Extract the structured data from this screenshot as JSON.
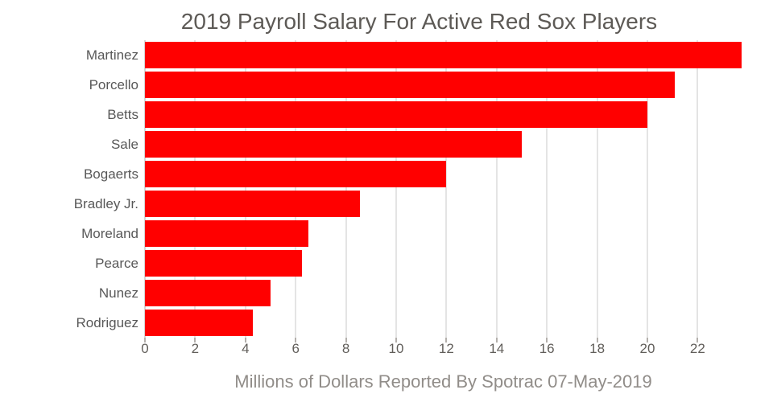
{
  "chart_data": {
    "type": "bar",
    "orientation": "horizontal",
    "title": "2019 Payroll Salary For Active Red Sox Players",
    "xlabel": "Millions of Dollars Reported By Spotrac 07-May-2019",
    "ylabel": "",
    "categories": [
      "Martinez",
      "Porcello",
      "Betts",
      "Sale",
      "Bogaerts",
      "Bradley Jr.",
      "Moreland",
      "Pearce",
      "Nunez",
      "Rodriguez"
    ],
    "values": [
      23.75,
      21.1,
      20,
      15,
      12,
      8.55,
      6.5,
      6.25,
      5,
      4.3
    ],
    "xlim": [
      0,
      23.75
    ],
    "xticks": [
      0,
      2,
      4,
      6,
      8,
      10,
      12,
      14,
      16,
      18,
      20,
      22
    ],
    "grid": true,
    "legend": false,
    "bar_color": "#ff0000",
    "grid_color": "#e4e4e4",
    "zeroline_color": "#d6d6d6",
    "title_color": "#5d5a56",
    "axis_label_color": "#918d89",
    "tick_label_color": "#615e5a",
    "category_label_color": "#585858"
  }
}
